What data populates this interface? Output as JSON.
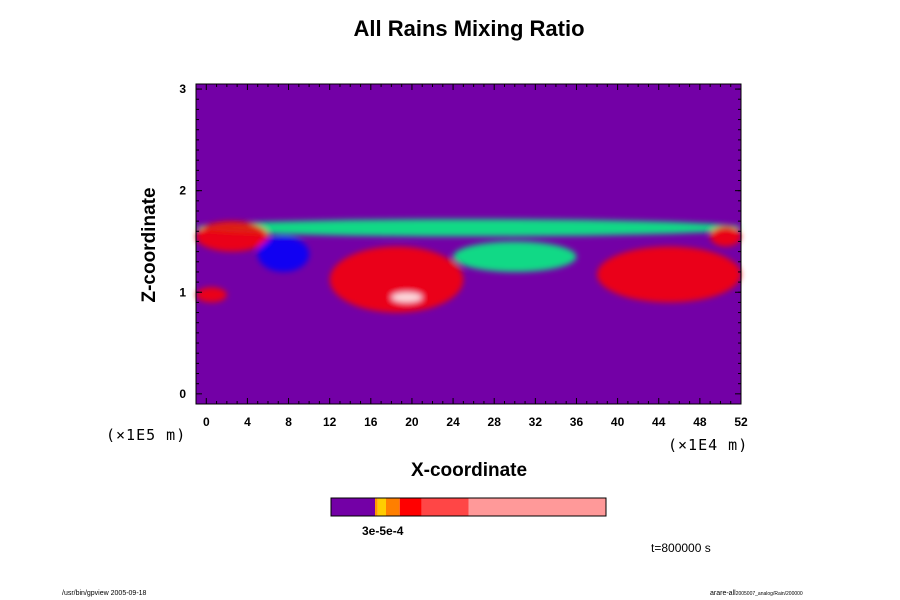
{
  "chart_data": {
    "type": "heatmap",
    "title": "All Rains Mixing Ratio",
    "xlabel": "X-coordinate",
    "ylabel": "Z-coordinate",
    "x_unit": "(×1E4 m)",
    "y_unit": "(×1E5 m)",
    "xlim": [
      -1,
      52
    ],
    "ylim": [
      -0.1,
      3.05
    ],
    "x_ticks": [
      0,
      4,
      8,
      12,
      16,
      20,
      24,
      28,
      32,
      36,
      40,
      44,
      48,
      52
    ],
    "y_ticks": [
      0,
      1,
      2,
      3
    ],
    "background_color": "#7300a6",
    "colorbar": {
      "colors": [
        "#7300a6",
        "#ff9900",
        "#ffcc00",
        "#ff7f00",
        "#ff0000",
        "#ff4646",
        "#ff9999"
      ],
      "boundaries": [
        0,
        0.16,
        0.17,
        0.2,
        0.25,
        0.33,
        0.5,
        1.0
      ],
      "tick_label": "3e-5e-4"
    },
    "rain_regions": [
      {
        "x": [
          -1,
          52
        ],
        "z": [
          1.55,
          1.72
        ],
        "level": "low",
        "color": "#00ff80"
      },
      {
        "x": [
          -1,
          6
        ],
        "z": [
          1.4,
          1.7
        ],
        "level": "moderate",
        "color": "#ff0000"
      },
      {
        "x": [
          -1,
          2
        ],
        "z": [
          0.9,
          1.05
        ],
        "level": "moderate",
        "color": "#ff0000"
      },
      {
        "x": [
          5,
          10
        ],
        "z": [
          1.2,
          1.55
        ],
        "level": "low",
        "color": "#0000ff"
      },
      {
        "x": [
          12,
          25
        ],
        "z": [
          0.8,
          1.45
        ],
        "level": "high",
        "color": "#ff0000"
      },
      {
        "x": [
          18,
          21
        ],
        "z": [
          0.9,
          1.0
        ],
        "level": "max",
        "color": "#ffffff"
      },
      {
        "x": [
          24,
          36
        ],
        "z": [
          1.2,
          1.5
        ],
        "level": "low",
        "color": "#00ff80"
      },
      {
        "x": [
          38,
          52
        ],
        "z": [
          0.9,
          1.45
        ],
        "level": "high",
        "color": "#ff0000"
      },
      {
        "x": [
          49,
          52
        ],
        "z": [
          1.45,
          1.65
        ],
        "level": "moderate",
        "color": "#ff0000"
      }
    ]
  },
  "annotations": {
    "time_label": "t=800000 s",
    "footer_left": "/usr/bin/gpview 2005-09-18",
    "footer_right_main": "arare-all",
    "footer_right_sub": "2005007_analog/Rain/200000"
  }
}
